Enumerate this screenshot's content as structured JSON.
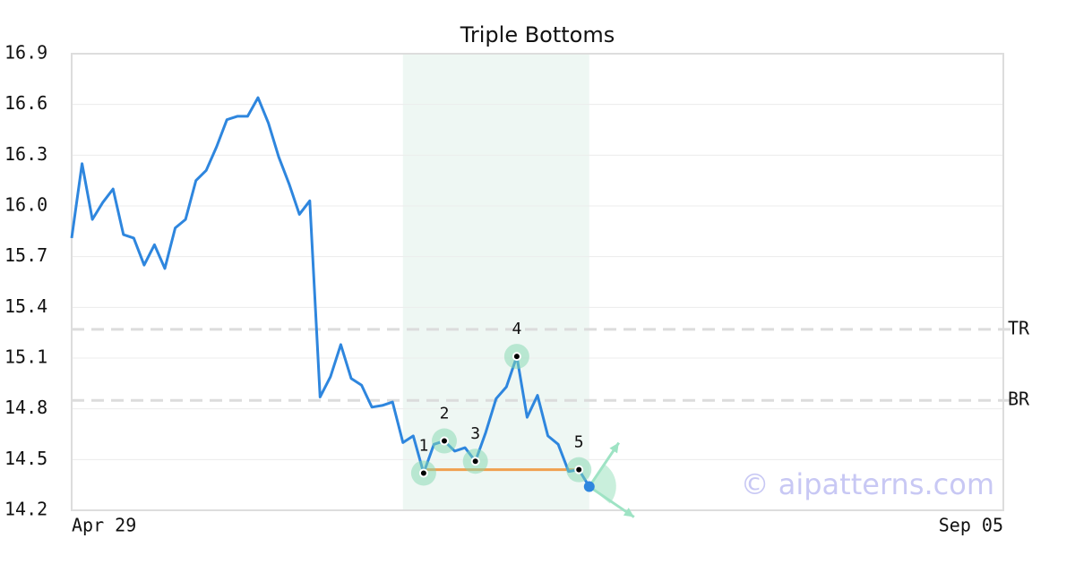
{
  "chart_data": {
    "type": "line",
    "title": "Triple Bottoms",
    "categories": [
      "Apr 29",
      null,
      null,
      null,
      null,
      null,
      null,
      null,
      null,
      null,
      null,
      null,
      null,
      null,
      null,
      null,
      null,
      null,
      null,
      null,
      null,
      null,
      null,
      null,
      null,
      null,
      null,
      null,
      null,
      null,
      null,
      null,
      null,
      null,
      null,
      null,
      null,
      null,
      null,
      null,
      null,
      null,
      null,
      null,
      null,
      null,
      null,
      null,
      null,
      null,
      null,
      null,
      null,
      null,
      null,
      null,
      null,
      null,
      null,
      null,
      null,
      null,
      null,
      null,
      null,
      null,
      null,
      null,
      null,
      null,
      null,
      null,
      null,
      null,
      null,
      null,
      null,
      null,
      null,
      null,
      null,
      null,
      null,
      null,
      null,
      null,
      null,
      null,
      null,
      null,
      "Sep 05"
    ],
    "values": [
      15.81,
      16.25,
      15.92,
      16.02,
      16.1,
      15.83,
      15.81,
      15.65,
      15.77,
      15.63,
      15.87,
      15.92,
      16.15,
      16.21,
      16.35,
      16.51,
      16.53,
      16.53,
      16.64,
      16.49,
      16.29,
      16.13,
      15.95,
      16.03,
      14.87,
      14.99,
      15.18,
      14.98,
      14.94,
      14.81,
      14.82,
      14.84,
      14.6,
      14.64,
      14.42,
      14.59,
      14.61,
      14.55,
      14.57,
      14.49,
      14.66,
      14.86,
      14.93,
      15.11,
      14.75,
      14.88,
      14.64,
      14.59,
      14.43,
      14.44,
      14.34,
      null,
      null,
      null,
      null,
      null,
      null,
      null,
      null,
      null,
      null,
      null,
      null,
      null,
      null,
      null,
      null,
      null,
      null,
      null,
      null,
      null,
      null,
      null,
      null,
      null,
      null,
      null,
      null,
      null,
      null,
      null,
      null,
      null,
      null,
      null,
      null,
      null,
      null,
      null,
      null
    ],
    "color": "#2e86de",
    "ylim": [
      14.2,
      16.9
    ],
    "yticks": [
      14.2,
      14.5,
      14.8,
      15.1,
      15.4,
      15.7,
      {
        "value": 16,
        "label": "16.0"
      },
      16.3,
      16.6,
      16.9
    ],
    "grid": true,
    "highlight": [
      32,
      50
    ],
    "levels": [
      {
        "label": "TR",
        "value": 15.27
      },
      {
        "label": "BR",
        "value": 14.85
      }
    ],
    "neckline": {
      "value": 14.44,
      "from": 34,
      "to": 49,
      "color": "#f0a050"
    },
    "pattern_points": [
      {
        "label": "1",
        "index": 34,
        "value": 14.42
      },
      {
        "label": "2",
        "index": 36,
        "value": 14.61
      },
      {
        "label": "3",
        "index": 39,
        "value": 14.49
      },
      {
        "label": "4",
        "index": 43,
        "value": 15.11
      },
      {
        "label": "5",
        "index": 49,
        "value": 14.44
      }
    ],
    "watermark": "© aipatterns.com"
  }
}
